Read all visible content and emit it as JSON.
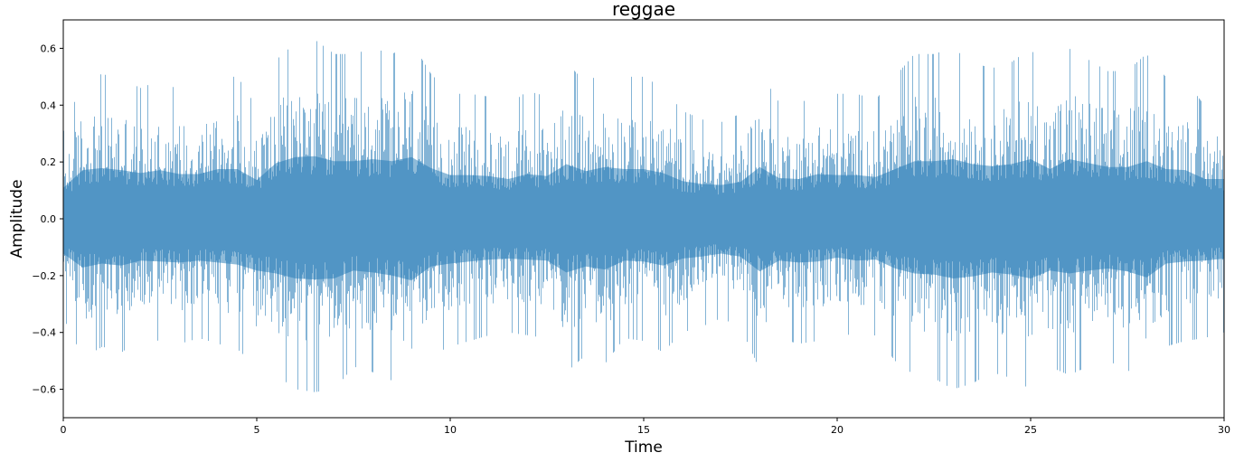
{
  "chart_data": {
    "type": "area",
    "title": "reggae",
    "xlabel": "Time",
    "ylabel": "Amplitude",
    "xlim": [
      0,
      30
    ],
    "ylim": [
      -0.7,
      0.7
    ],
    "xticks": [
      0,
      5,
      10,
      15,
      20,
      25,
      30
    ],
    "xtick_labels": [
      "0",
      "5",
      "10",
      "15",
      "20",
      "25",
      "30"
    ],
    "yticks": [
      -0.6,
      -0.4,
      -0.2,
      0.0,
      0.2,
      0.4,
      0.6
    ],
    "ytick_labels": [
      "−0.6",
      "−0.4",
      "−0.2",
      "0.0",
      "0.2",
      "0.4",
      "0.6"
    ],
    "grid": false,
    "color": "#1f77b4",
    "series": [
      {
        "x": [
          0.0,
          0.5,
          1.0,
          1.5,
          2.0,
          2.5,
          3.0,
          3.5,
          4.0,
          4.5,
          5.0,
          5.5,
          6.0,
          6.5,
          7.0,
          7.5,
          8.0,
          8.5,
          9.0,
          9.5,
          10.0,
          10.5,
          11.0,
          11.5,
          12.0,
          12.5,
          13.0,
          13.5,
          14.0,
          14.5,
          15.0,
          15.5,
          16.0,
          16.5,
          17.0,
          17.5,
          18.0,
          18.5,
          19.0,
          19.5,
          20.0,
          20.5,
          21.0,
          21.5,
          22.0,
          22.5,
          23.0,
          23.5,
          24.0,
          24.5,
          25.0,
          25.5,
          26.0,
          26.5,
          27.0,
          27.5,
          28.0,
          28.5,
          29.0,
          29.5,
          30.0
        ],
        "max": [
          0.31,
          0.49,
          0.51,
          0.49,
          0.46,
          0.49,
          0.45,
          0.45,
          0.5,
          0.5,
          0.39,
          0.56,
          0.62,
          0.63,
          0.58,
          0.58,
          0.6,
          0.58,
          0.62,
          0.51,
          0.44,
          0.44,
          0.43,
          0.4,
          0.45,
          0.43,
          0.55,
          0.48,
          0.52,
          0.5,
          0.5,
          0.46,
          0.38,
          0.35,
          0.34,
          0.37,
          0.52,
          0.41,
          0.4,
          0.45,
          0.44,
          0.44,
          0.42,
          0.5,
          0.58,
          0.58,
          0.6,
          0.55,
          0.53,
          0.55,
          0.6,
          0.5,
          0.6,
          0.56,
          0.52,
          0.52,
          0.58,
          0.5,
          0.49,
          0.4,
          0.4
        ],
        "min": [
          -0.35,
          -0.49,
          -0.45,
          -0.47,
          -0.42,
          -0.43,
          -0.44,
          -0.42,
          -0.44,
          -0.46,
          -0.52,
          -0.55,
          -0.6,
          -0.61,
          -0.6,
          -0.52,
          -0.54,
          -0.57,
          -0.62,
          -0.48,
          -0.45,
          -0.43,
          -0.41,
          -0.4,
          -0.41,
          -0.42,
          -0.54,
          -0.48,
          -0.51,
          -0.42,
          -0.43,
          -0.47,
          -0.4,
          -0.38,
          -0.35,
          -0.38,
          -0.53,
          -0.42,
          -0.44,
          -0.43,
          -0.39,
          -0.42,
          -0.41,
          -0.5,
          -0.55,
          -0.56,
          -0.6,
          -0.58,
          -0.54,
          -0.56,
          -0.6,
          -0.52,
          -0.55,
          -0.52,
          -0.5,
          -0.53,
          -0.59,
          -0.45,
          -0.43,
          -0.42,
          -0.4
        ]
      }
    ]
  }
}
